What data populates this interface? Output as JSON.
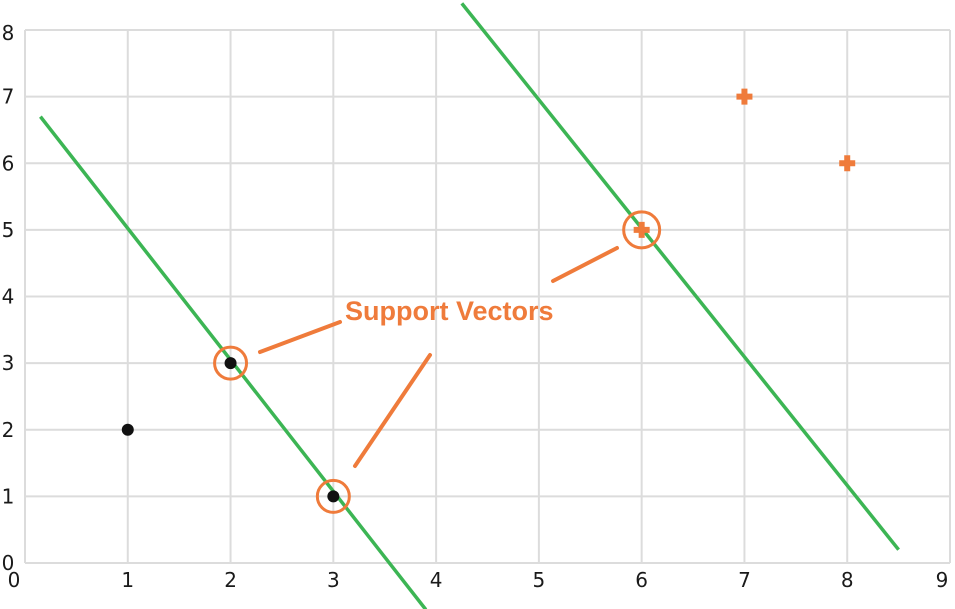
{
  "chart_data": {
    "type": "scatter",
    "title": "",
    "xlabel": "",
    "ylabel": "",
    "xlim": [
      0,
      9
    ],
    "ylim": [
      0,
      8
    ],
    "x_ticks": [
      "0",
      "1",
      "2",
      "3",
      "4",
      "5",
      "6",
      "7",
      "8",
      "9"
    ],
    "y_ticks": [
      "0",
      "1",
      "2",
      "3",
      "4",
      "5",
      "6",
      "7",
      "8"
    ],
    "grid": true,
    "series": [
      {
        "marker": "dot",
        "color": "#111111",
        "points": [
          [
            1,
            2
          ],
          [
            2,
            3
          ],
          [
            3,
            1
          ]
        ]
      },
      {
        "marker": "plus",
        "color": "#ef7b3b",
        "points": [
          [
            6,
            5
          ],
          [
            7,
            7
          ],
          [
            8,
            6
          ]
        ]
      }
    ],
    "lines": [
      {
        "color": "#3cb554",
        "x1": 0.15,
        "y1": 6.7,
        "x2": 3.9,
        "y2": -0.7
      },
      {
        "color": "#3cb554",
        "x1": 4.25,
        "y1": 8.4,
        "x2": 8.5,
        "y2": 0.2
      }
    ],
    "support_vectors": [
      [
        2,
        3
      ],
      [
        3,
        1
      ],
      [
        6,
        5
      ]
    ],
    "annotation": {
      "text": "Support Vectors",
      "color": "#ef7b3b",
      "x": 3.1,
      "y": 3.75
    }
  },
  "colors": {
    "grid": "#dcdcdc",
    "axis_text": "#1a1a1a",
    "accent": "#ef7b3b",
    "line": "#3cb554"
  }
}
